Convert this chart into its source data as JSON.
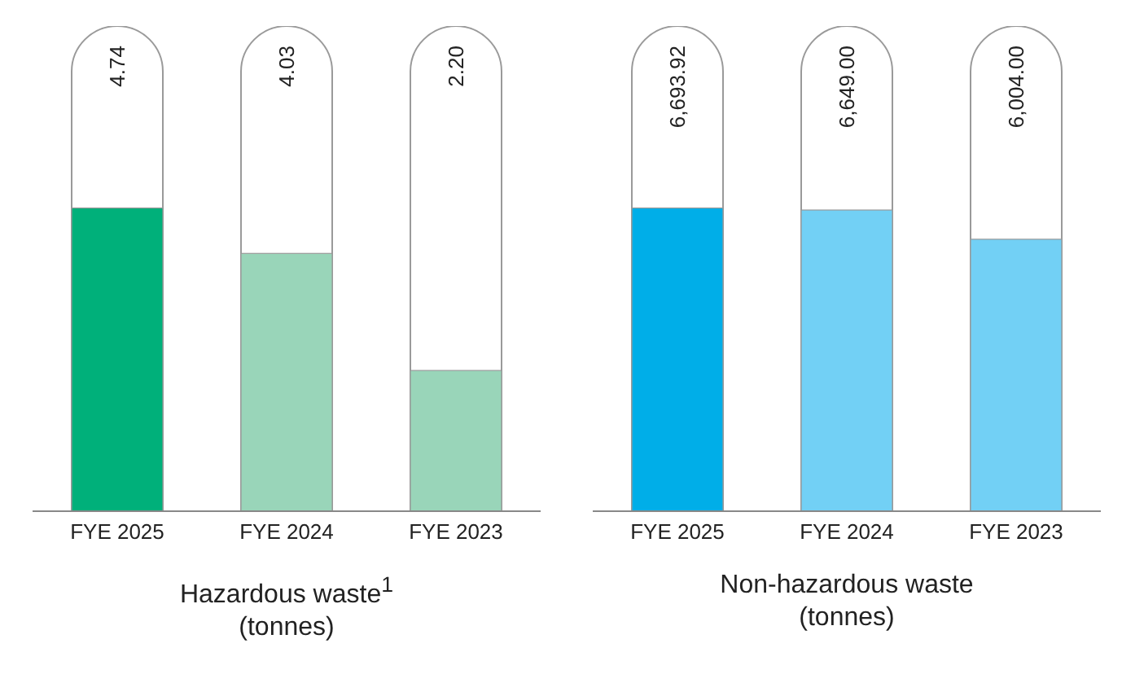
{
  "chart_data": [
    {
      "type": "bar",
      "title": "Hazardous waste$^{1}$",
      "subtitle": "(tonnes)",
      "categories": [
        "FYE 2025",
        "FYE 2024",
        "FYE 2023"
      ],
      "values": [
        4.74,
        4.03,
        2.2
      ],
      "colors": [
        "#00b07a",
        "#99d5b9",
        "#99d5b9"
      ],
      "value_labels": [
        "4.74",
        "4.03",
        "2.20"
      ]
    },
    {
      "type": "bar",
      "title": "Non-hazardous waste",
      "subtitle": "(tonnes)",
      "categories": [
        "FYE 2025",
        "FYE 2024",
        "FYE 2023"
      ],
      "values": [
        6693.92,
        6649.0,
        6004.0
      ],
      "colors": [
        "#00aee8",
        "#72d0f5",
        "#72d0f5"
      ],
      "value_labels": [
        "6,693.92",
        "6,649.00",
        "6,004.00"
      ]
    }
  ]
}
